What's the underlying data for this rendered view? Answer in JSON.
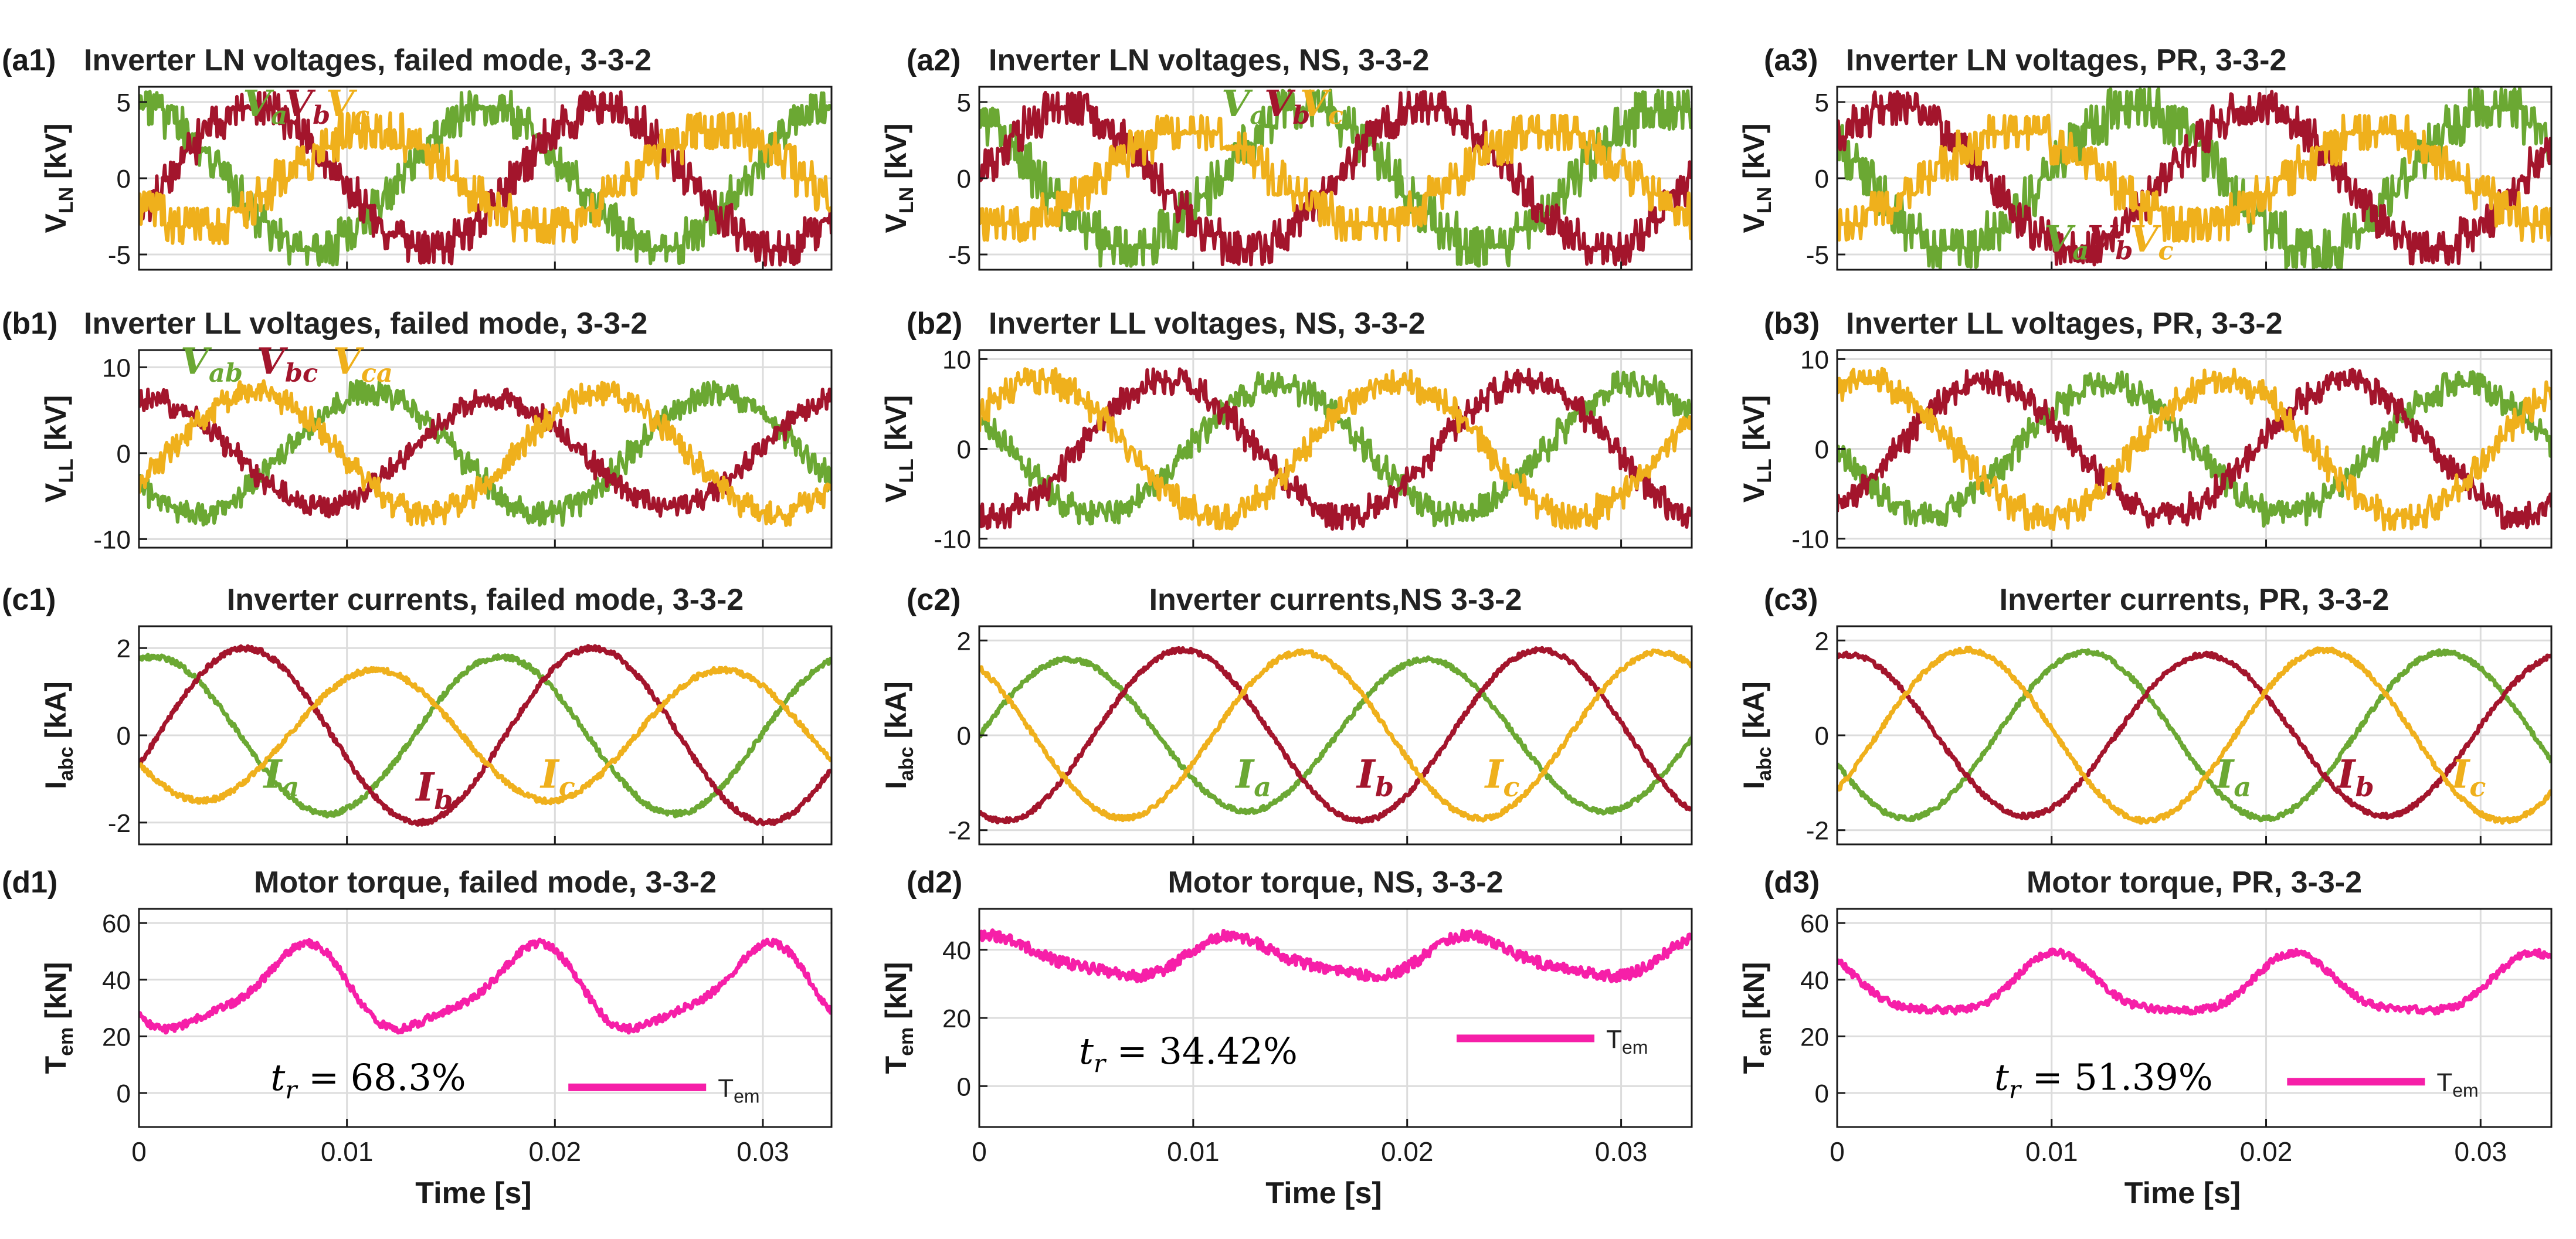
{
  "colors": {
    "a": "#6BA833",
    "b": "#A3152C",
    "c": "#EFB01C",
    "torque": "#F61FA8",
    "grid": "#dcdcdc",
    "axis": "#1a1a1a"
  },
  "x_axis": {
    "label": "Time [s]",
    "ticks": [
      0,
      0.01,
      0.02,
      0.03
    ],
    "tick_labels": [
      "0",
      "0.01",
      "0.02",
      "0.03"
    ],
    "range": [
      0,
      0.0333
    ]
  },
  "chart_data": [
    {
      "id": "a1",
      "label": "(a1)",
      "title": "Inverter LN voltages, failed mode, 3-3-2",
      "type": "line",
      "ylabel": "V_LN [kV]",
      "ylabel_main": "V",
      "ylabel_sub": "LN",
      "ylabel_unit": " [kV]",
      "ylim": [
        -6,
        6
      ],
      "yticks": [
        -5,
        0,
        5
      ],
      "xlim": [
        0,
        0.0333
      ],
      "grid": true,
      "show_xticks": false,
      "series": [
        {
          "name": "Va",
          "letter": "V",
          "sub": "a",
          "color_key": "a",
          "amp": 4.6,
          "phase": 90,
          "kind": "stair",
          "steps": 5,
          "noise": 0.35
        },
        {
          "name": "Vb",
          "letter": "V",
          "sub": "b",
          "color_key": "b",
          "amp": 4.6,
          "phase": -30,
          "kind": "stair",
          "steps": 5,
          "noise": 0.35
        },
        {
          "name": "Vc",
          "letter": "V",
          "sub": "c",
          "color_key": "c",
          "amp": 3.1,
          "phase": 210,
          "kind": "stair",
          "steps": 3,
          "noise": 0.3
        }
      ]
    },
    {
      "id": "a2",
      "label": "(a2)",
      "title": "Inverter LN voltages, NS, 3-3-2",
      "type": "line",
      "ylabel": "V_LN [kV]",
      "ylabel_main": "V",
      "ylabel_sub": "LN",
      "ylabel_unit": " [kV]",
      "ylim": [
        -6,
        6
      ],
      "yticks": [
        -5,
        0,
        5
      ],
      "xlim": [
        0,
        0.0333
      ],
      "grid": true,
      "show_xticks": false,
      "series": [
        {
          "name": "Va",
          "letter": "V",
          "sub": "a",
          "color_key": "a",
          "amp": 4.5,
          "phase": 120,
          "kind": "stair",
          "steps": 4,
          "noise": 0.3
        },
        {
          "name": "Vb",
          "letter": "V",
          "sub": "b",
          "color_key": "b",
          "amp": 4.6,
          "phase": 0,
          "kind": "stair",
          "steps": 5,
          "noise": 0.3
        },
        {
          "name": "Vc",
          "letter": "V",
          "sub": "c",
          "color_key": "c",
          "amp": 3.0,
          "phase": 240,
          "kind": "stair",
          "steps": 3,
          "noise": 0.25
        }
      ]
    },
    {
      "id": "a3",
      "label": "(a3)",
      "title": "Inverter LN voltages, PR, 3-3-2",
      "type": "line",
      "ylabel": "V_LN [kV]",
      "ylabel_main": "V",
      "ylabel_sub": "LN",
      "ylabel_unit": " [kV]",
      "ylim": [
        -6,
        6
      ],
      "yticks": [
        -5,
        0,
        5
      ],
      "xlim": [
        0,
        0.0333
      ],
      "grid": true,
      "show_xticks": false,
      "series": [
        {
          "name": "Va",
          "letter": "V",
          "sub": "a",
          "color_key": "a",
          "amp": 4.6,
          "phase": 150,
          "kind": "stair",
          "steps": 4,
          "noise": 0.3
        },
        {
          "name": "Vb",
          "letter": "V",
          "sub": "b",
          "color_key": "b",
          "amp": 4.6,
          "phase": 30,
          "kind": "stair",
          "steps": 5,
          "noise": 0.35
        },
        {
          "name": "Vc",
          "letter": "V",
          "sub": "c",
          "color_key": "c",
          "amp": 3.0,
          "phase": 270,
          "kind": "stair",
          "steps": 3,
          "noise": 0.25
        }
      ]
    },
    {
      "id": "b1",
      "label": "(b1)",
      "title": "Inverter LL voltages, failed mode, 3-3-2",
      "type": "line",
      "ylabel": "V_LL [kV]",
      "ylabel_main": "V",
      "ylabel_sub": "LL",
      "ylabel_unit": " [kV]",
      "ylim": [
        -11,
        12
      ],
      "yticks": [
        -10,
        0,
        10
      ],
      "xlim": [
        0,
        0.0333
      ],
      "grid": true,
      "show_xticks": false,
      "series": [
        {
          "name": "Vab",
          "letter": "V",
          "sub": "ab",
          "color_key": "a",
          "amp": 7.0,
          "phase": 210,
          "kind": "stair",
          "steps": 7,
          "noise": 0.8
        },
        {
          "name": "Vbc",
          "letter": "V",
          "sub": "bc",
          "color_key": "b",
          "amp": 6.2,
          "phase": 80,
          "kind": "stair",
          "steps": 7,
          "noise": 0.7
        },
        {
          "name": "Vca",
          "letter": "V",
          "sub": "ca",
          "color_key": "c",
          "amp": 7.0,
          "phase": 330,
          "kind": "stair",
          "steps": 7,
          "noise": 0.8
        }
      ]
    },
    {
      "id": "b2",
      "label": "(b2)",
      "title": "Inverter LL voltages, NS, 3-3-2",
      "type": "line",
      "ylabel": "V_LL [kV]",
      "ylabel_main": "V",
      "ylabel_sub": "LL",
      "ylabel_unit": " [kV]",
      "ylim": [
        -11,
        11
      ],
      "yticks": [
        -10,
        0,
        10
      ],
      "xlim": [
        0,
        0.0333
      ],
      "grid": true,
      "show_xticks": false,
      "series": [
        {
          "name": "Vab",
          "letter": "V",
          "sub": "ab",
          "color_key": "a",
          "amp": 7.2,
          "phase": 150,
          "kind": "stair",
          "steps": 7,
          "noise": 0.7
        },
        {
          "name": "Vbc",
          "letter": "V",
          "sub": "bc",
          "color_key": "b",
          "amp": 7.5,
          "phase": 260,
          "kind": "stair",
          "steps": 7,
          "noise": 0.7
        },
        {
          "name": "Vca",
          "letter": "V",
          "sub": "ca",
          "color_key": "c",
          "amp": 7.5,
          "phase": 30,
          "kind": "stair",
          "steps": 7,
          "noise": 0.7
        }
      ]
    },
    {
      "id": "b3",
      "label": "(b3)",
      "title": "Inverter LL voltages, PR, 3-3-2",
      "type": "line",
      "ylabel": "V_LL [kV]",
      "ylabel_main": "V",
      "ylabel_sub": "LL",
      "ylabel_unit": " [kV]",
      "ylim": [
        -11,
        11
      ],
      "yticks": [
        -10,
        0,
        10
      ],
      "xlim": [
        0,
        0.0333
      ],
      "grid": true,
      "show_xticks": false,
      "series": [
        {
          "name": "Vab",
          "letter": "V",
          "sub": "ab",
          "color_key": "a",
          "amp": 7.2,
          "phase": 180,
          "kind": "stair",
          "steps": 7,
          "noise": 0.7
        },
        {
          "name": "Vbc",
          "letter": "V",
          "sub": "bc",
          "color_key": "b",
          "amp": 7.4,
          "phase": 300,
          "kind": "stair",
          "steps": 7,
          "noise": 0.8
        },
        {
          "name": "Vca",
          "letter": "V",
          "sub": "ca",
          "color_key": "c",
          "amp": 7.6,
          "phase": 60,
          "kind": "stair",
          "steps": 7,
          "noise": 0.7
        }
      ]
    },
    {
      "id": "c1",
      "label": "(c1)",
      "title": "Inverter currents, failed mode, 3-3-2",
      "type": "line",
      "ylabel": "I_abc [kA]",
      "ylabel_main": "I",
      "ylabel_sub": "abc",
      "ylabel_unit": " [kA]",
      "ylim": [
        -2.5,
        2.5
      ],
      "yticks": [
        -2,
        0,
        2
      ],
      "xlim": [
        0,
        0.0333
      ],
      "grid": true,
      "show_xticks": false,
      "series": [
        {
          "name": "Ia",
          "letter": "I",
          "sub": "a",
          "color_key": "a",
          "amp": 1.8,
          "phase": 75,
          "kind": "sine",
          "noise": 0.06
        },
        {
          "name": "Ib",
          "letter": "I",
          "sub": "b",
          "color_key": "b",
          "amp": 2.0,
          "phase": -20,
          "kind": "sine",
          "noise": 0.06
        },
        {
          "name": "Ic",
          "letter": "I",
          "sub": "c",
          "color_key": "c",
          "amp": 1.5,
          "phase": 205,
          "kind": "sine",
          "noise": 0.06
        }
      ]
    },
    {
      "id": "c2",
      "label": "(c2)",
      "title": "Inverter currents,NS 3-3-2",
      "type": "line",
      "ylabel": "I_abc [kA]",
      "ylabel_main": "I",
      "ylabel_sub": "abc",
      "ylabel_unit": " [kA]",
      "ylim": [
        -2.3,
        2.3
      ],
      "yticks": [
        -2,
        0,
        2
      ],
      "xlim": [
        0,
        0.0333
      ],
      "grid": true,
      "show_xticks": false,
      "series": [
        {
          "name": "Ia",
          "letter": "I",
          "sub": "a",
          "color_key": "a",
          "amp": 1.6,
          "phase": 0,
          "kind": "sine",
          "noise": 0.05
        },
        {
          "name": "Ib",
          "letter": "I",
          "sub": "b",
          "color_key": "b",
          "amp": 1.8,
          "phase": 245,
          "kind": "sine",
          "noise": 0.05
        },
        {
          "name": "Ic",
          "letter": "I",
          "sub": "c",
          "color_key": "c",
          "amp": 1.75,
          "phase": 125,
          "kind": "sine",
          "noise": 0.05
        }
      ]
    },
    {
      "id": "c3",
      "label": "(c3)",
      "title": "Inverter currents, PR, 3-3-2",
      "type": "line",
      "ylabel": "I_abc [kA]",
      "ylabel_main": "I",
      "ylabel_sub": "abc",
      "ylabel_unit": " [kA]",
      "ylim": [
        -2.3,
        2.3
      ],
      "yticks": [
        -2,
        0,
        2
      ],
      "xlim": [
        0,
        0.0333
      ],
      "grid": true,
      "show_xticks": false,
      "series": [
        {
          "name": "Ia",
          "letter": "I",
          "sub": "a",
          "color_key": "a",
          "amp": 1.75,
          "phase": 200,
          "kind": "sine",
          "noise": 0.05
        },
        {
          "name": "Ib",
          "letter": "I",
          "sub": "b",
          "color_key": "b",
          "amp": 1.7,
          "phase": 80,
          "kind": "sine",
          "noise": 0.05
        },
        {
          "name": "Ic",
          "letter": "I",
          "sub": "c",
          "color_key": "c",
          "amp": 1.8,
          "phase": 320,
          "kind": "sine",
          "noise": 0.05
        }
      ]
    },
    {
      "id": "d1",
      "label": "(d1)",
      "title": "Motor torque, failed mode, 3-3-2",
      "type": "line",
      "ylabel": "T_em [kN]",
      "ylabel_main": "T",
      "ylabel_sub": "em",
      "ylabel_unit": " [kN]",
      "ylim": [
        -12,
        65
      ],
      "yticks": [
        0,
        20,
        40,
        60
      ],
      "xlim": [
        0,
        0.0333
      ],
      "grid": true,
      "show_xticks": true,
      "tr_text": "t_r = 68.3%",
      "tr_value": "68.3%",
      "legend": "Tem",
      "series": [
        {
          "name": "Tem",
          "color_key": "torque",
          "kind": "torque",
          "mean": 36,
          "amp": 14,
          "harmonic": 3,
          "phase": 200,
          "noise": 1.4
        }
      ]
    },
    {
      "id": "d2",
      "label": "(d2)",
      "title": "Motor torque, NS, 3-3-2",
      "type": "line",
      "ylabel": "T_em [kN]",
      "ylabel_main": "T",
      "ylabel_sub": "em",
      "ylabel_unit": " [kN]",
      "ylim": [
        -12,
        52
      ],
      "yticks": [
        0,
        20,
        40
      ],
      "xlim": [
        0,
        0.0333
      ],
      "grid": true,
      "show_xticks": true,
      "tr_text": "t_r = 34.42%",
      "tr_value": "34.42%",
      "legend": "Tem",
      "series": [
        {
          "name": "Tem",
          "color_key": "torque",
          "kind": "torque",
          "mean": 37.5,
          "amp": 5.5,
          "harmonic": 3,
          "phase": 60,
          "noise": 1.6
        }
      ]
    },
    {
      "id": "d3",
      "label": "(d3)",
      "title": "Motor torque, PR, 3-3-2",
      "type": "line",
      "ylabel": "T_em [kN]",
      "ylabel_main": "T",
      "ylabel_sub": "em",
      "ylabel_unit": " [kN]",
      "ylim": [
        -12,
        65
      ],
      "yticks": [
        0,
        20,
        40,
        60
      ],
      "xlim": [
        0,
        0.0333
      ],
      "grid": true,
      "show_xticks": true,
      "tr_text": "t_r = 51.39%",
      "tr_value": "51.39%",
      "legend": "Tem",
      "series": [
        {
          "name": "Tem",
          "color_key": "torque",
          "kind": "torque",
          "mean": 37,
          "amp": 10,
          "harmonic": 3,
          "phase": 120,
          "noise": 1.3
        }
      ]
    }
  ]
}
